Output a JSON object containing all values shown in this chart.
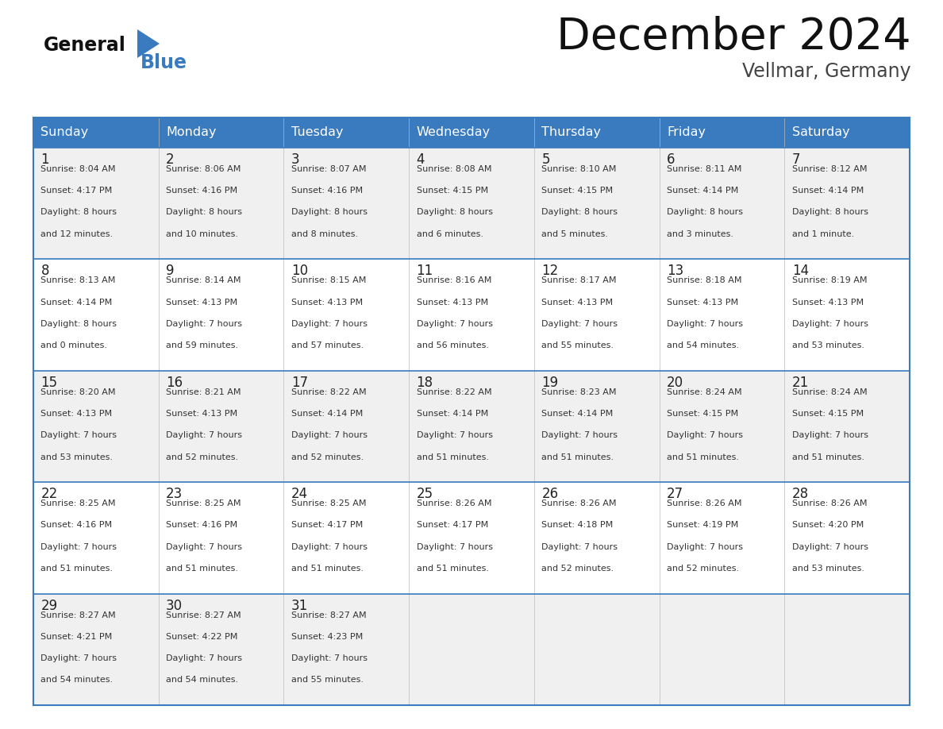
{
  "title": "December 2024",
  "subtitle": "Vellmar, Germany",
  "header_color": "#3a7abf",
  "header_text_color": "#ffffff",
  "days_of_week": [
    "Sunday",
    "Monday",
    "Tuesday",
    "Wednesday",
    "Thursday",
    "Friday",
    "Saturday"
  ],
  "bg_color": "#ffffff",
  "cell_bg_even": "#f0f0f0",
  "cell_bg_odd": "#ffffff",
  "row_line_color": "#3a7abf",
  "grid_line_color": "#bbbbbb",
  "day_num_color": "#222222",
  "text_color": "#333333",
  "calendar": [
    [
      {
        "day": 1,
        "sunrise": "8:04 AM",
        "sunset": "4:17 PM",
        "daylight_hours": 8,
        "daylight_minutes": 12
      },
      {
        "day": 2,
        "sunrise": "8:06 AM",
        "sunset": "4:16 PM",
        "daylight_hours": 8,
        "daylight_minutes": 10
      },
      {
        "day": 3,
        "sunrise": "8:07 AM",
        "sunset": "4:16 PM",
        "daylight_hours": 8,
        "daylight_minutes": 8
      },
      {
        "day": 4,
        "sunrise": "8:08 AM",
        "sunset": "4:15 PM",
        "daylight_hours": 8,
        "daylight_minutes": 6
      },
      {
        "day": 5,
        "sunrise": "8:10 AM",
        "sunset": "4:15 PM",
        "daylight_hours": 8,
        "daylight_minutes": 5
      },
      {
        "day": 6,
        "sunrise": "8:11 AM",
        "sunset": "4:14 PM",
        "daylight_hours": 8,
        "daylight_minutes": 3
      },
      {
        "day": 7,
        "sunrise": "8:12 AM",
        "sunset": "4:14 PM",
        "daylight_hours": 8,
        "daylight_minutes": 1
      }
    ],
    [
      {
        "day": 8,
        "sunrise": "8:13 AM",
        "sunset": "4:14 PM",
        "daylight_hours": 8,
        "daylight_minutes": 0
      },
      {
        "day": 9,
        "sunrise": "8:14 AM",
        "sunset": "4:13 PM",
        "daylight_hours": 7,
        "daylight_minutes": 59
      },
      {
        "day": 10,
        "sunrise": "8:15 AM",
        "sunset": "4:13 PM",
        "daylight_hours": 7,
        "daylight_minutes": 57
      },
      {
        "day": 11,
        "sunrise": "8:16 AM",
        "sunset": "4:13 PM",
        "daylight_hours": 7,
        "daylight_minutes": 56
      },
      {
        "day": 12,
        "sunrise": "8:17 AM",
        "sunset": "4:13 PM",
        "daylight_hours": 7,
        "daylight_minutes": 55
      },
      {
        "day": 13,
        "sunrise": "8:18 AM",
        "sunset": "4:13 PM",
        "daylight_hours": 7,
        "daylight_minutes": 54
      },
      {
        "day": 14,
        "sunrise": "8:19 AM",
        "sunset": "4:13 PM",
        "daylight_hours": 7,
        "daylight_minutes": 53
      }
    ],
    [
      {
        "day": 15,
        "sunrise": "8:20 AM",
        "sunset": "4:13 PM",
        "daylight_hours": 7,
        "daylight_minutes": 53
      },
      {
        "day": 16,
        "sunrise": "8:21 AM",
        "sunset": "4:13 PM",
        "daylight_hours": 7,
        "daylight_minutes": 52
      },
      {
        "day": 17,
        "sunrise": "8:22 AM",
        "sunset": "4:14 PM",
        "daylight_hours": 7,
        "daylight_minutes": 52
      },
      {
        "day": 18,
        "sunrise": "8:22 AM",
        "sunset": "4:14 PM",
        "daylight_hours": 7,
        "daylight_minutes": 51
      },
      {
        "day": 19,
        "sunrise": "8:23 AM",
        "sunset": "4:14 PM",
        "daylight_hours": 7,
        "daylight_minutes": 51
      },
      {
        "day": 20,
        "sunrise": "8:24 AM",
        "sunset": "4:15 PM",
        "daylight_hours": 7,
        "daylight_minutes": 51
      },
      {
        "day": 21,
        "sunrise": "8:24 AM",
        "sunset": "4:15 PM",
        "daylight_hours": 7,
        "daylight_minutes": 51
      }
    ],
    [
      {
        "day": 22,
        "sunrise": "8:25 AM",
        "sunset": "4:16 PM",
        "daylight_hours": 7,
        "daylight_minutes": 51
      },
      {
        "day": 23,
        "sunrise": "8:25 AM",
        "sunset": "4:16 PM",
        "daylight_hours": 7,
        "daylight_minutes": 51
      },
      {
        "day": 24,
        "sunrise": "8:25 AM",
        "sunset": "4:17 PM",
        "daylight_hours": 7,
        "daylight_minutes": 51
      },
      {
        "day": 25,
        "sunrise": "8:26 AM",
        "sunset": "4:17 PM",
        "daylight_hours": 7,
        "daylight_minutes": 51
      },
      {
        "day": 26,
        "sunrise": "8:26 AM",
        "sunset": "4:18 PM",
        "daylight_hours": 7,
        "daylight_minutes": 52
      },
      {
        "day": 27,
        "sunrise": "8:26 AM",
        "sunset": "4:19 PM",
        "daylight_hours": 7,
        "daylight_minutes": 52
      },
      {
        "day": 28,
        "sunrise": "8:26 AM",
        "sunset": "4:20 PM",
        "daylight_hours": 7,
        "daylight_minutes": 53
      }
    ],
    [
      {
        "day": 29,
        "sunrise": "8:27 AM",
        "sunset": "4:21 PM",
        "daylight_hours": 7,
        "daylight_minutes": 54
      },
      {
        "day": 30,
        "sunrise": "8:27 AM",
        "sunset": "4:22 PM",
        "daylight_hours": 7,
        "daylight_minutes": 54
      },
      {
        "day": 31,
        "sunrise": "8:27 AM",
        "sunset": "4:23 PM",
        "daylight_hours": 7,
        "daylight_minutes": 55
      },
      null,
      null,
      null,
      null
    ]
  ]
}
